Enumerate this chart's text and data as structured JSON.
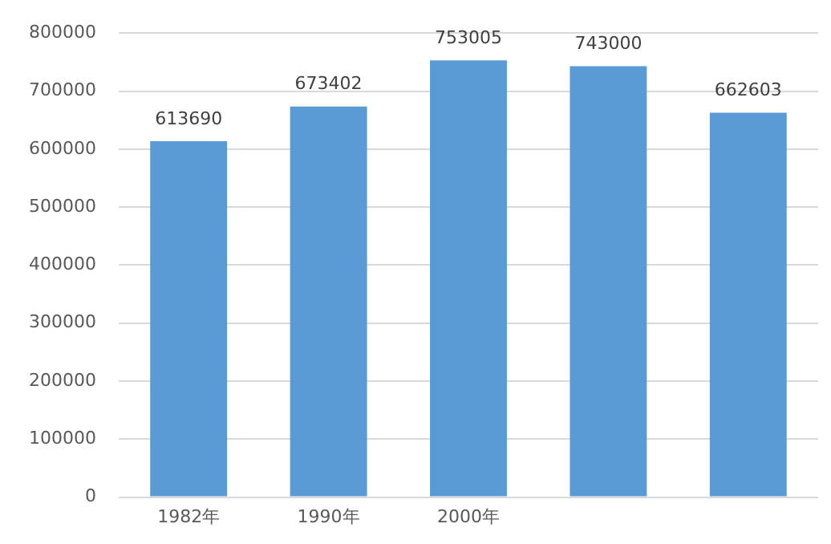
{
  "chart_data": {
    "type": "bar",
    "categories": [
      "1982年",
      "1990年",
      "2000年",
      null,
      null
    ],
    "values": [
      613690,
      673402,
      753005,
      743000,
      662603
    ],
    "color": "#5b9bd5",
    "ylim": [
      0,
      800000
    ],
    "yticks": [
      0,
      100000,
      200000,
      300000,
      400000,
      500000,
      600000,
      700000,
      800000
    ],
    "grid": "y",
    "data_labels": true,
    "legend": false
  }
}
